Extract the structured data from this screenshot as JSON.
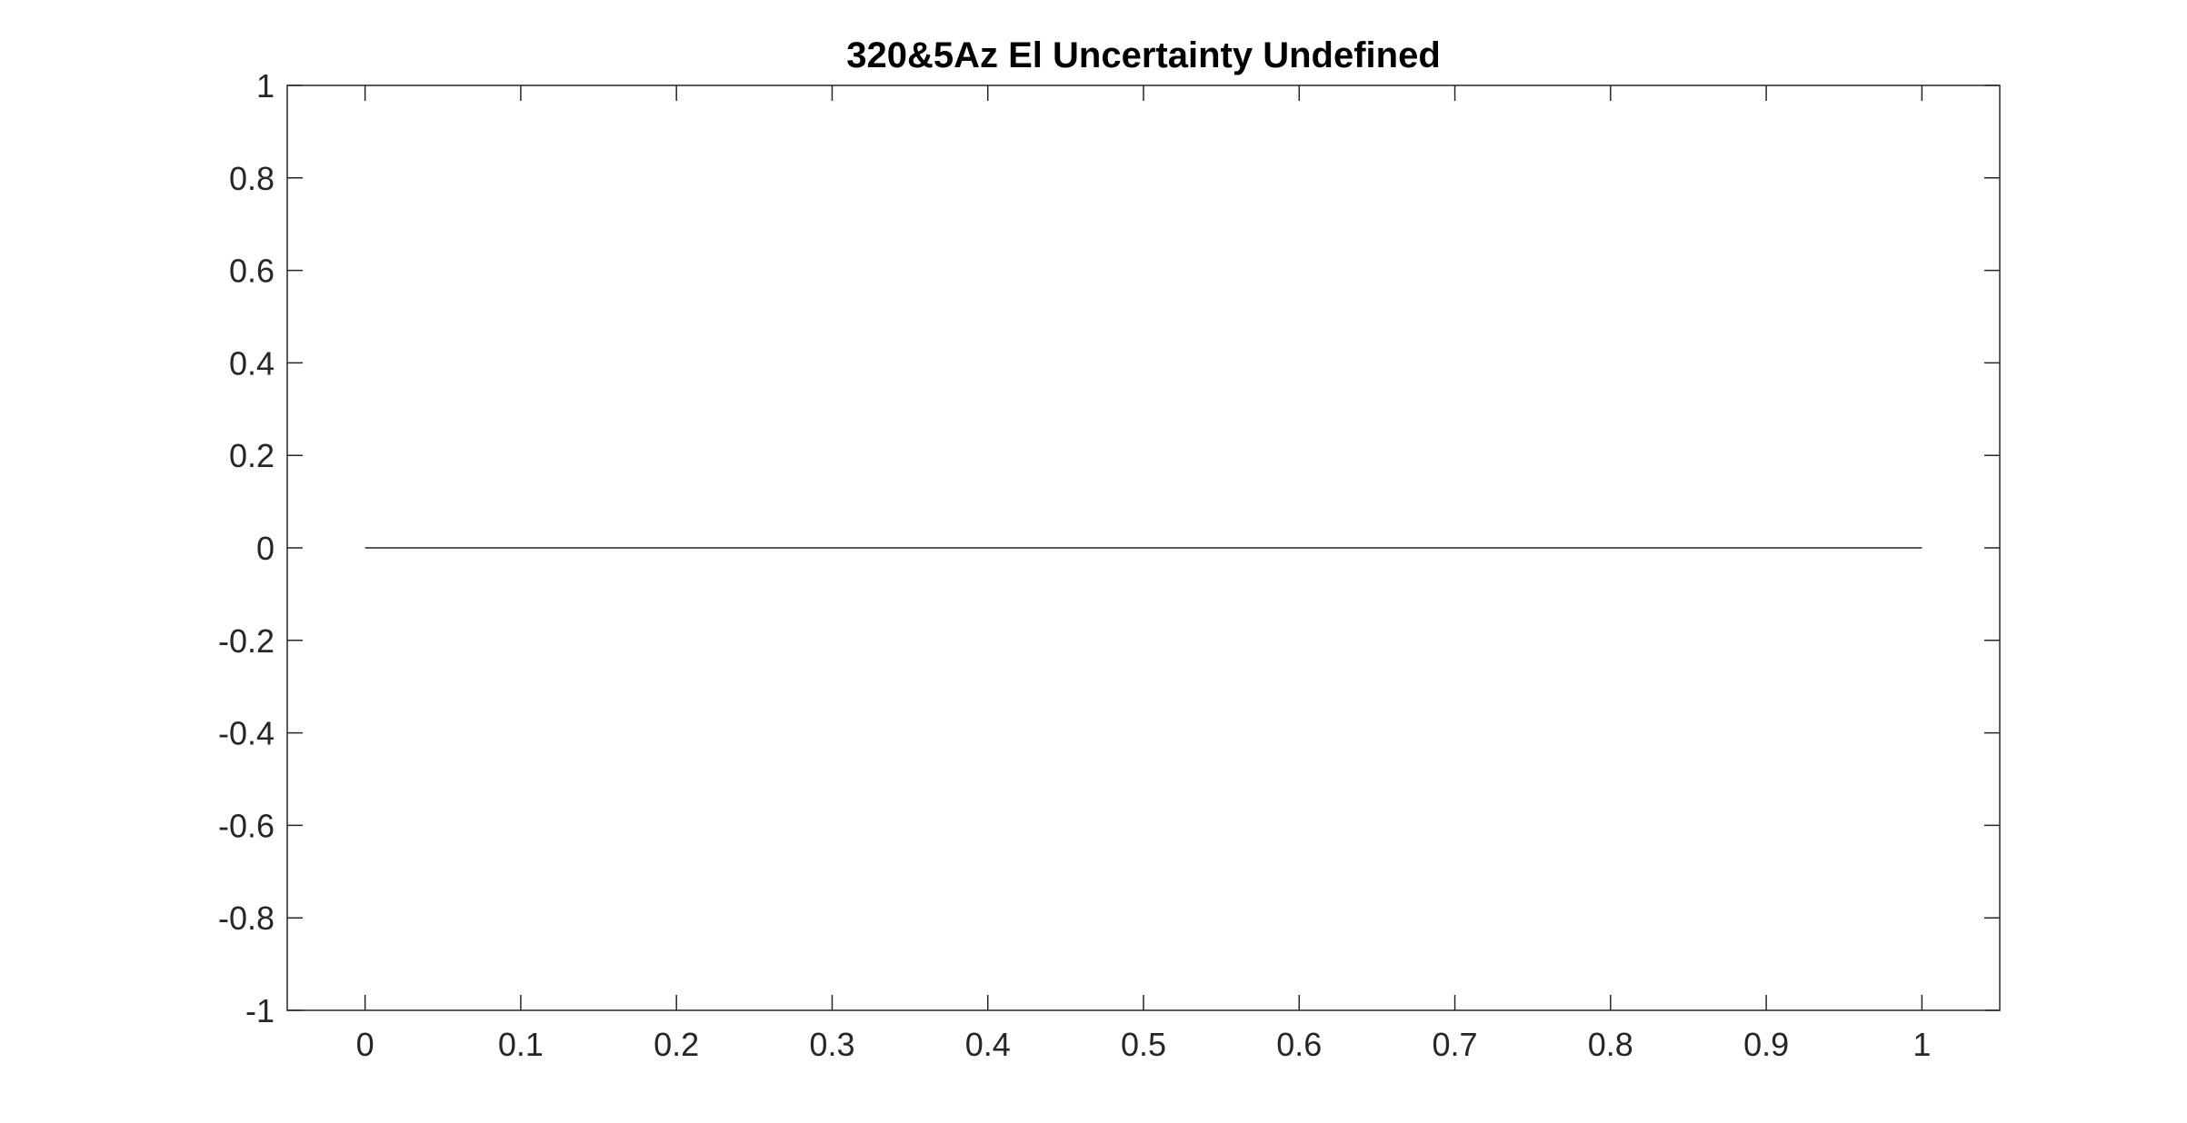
{
  "chart_data": {
    "type": "line",
    "title": "320&5Az El Uncertainty Undefined",
    "xlabel": "",
    "ylabel": "",
    "xlim": [
      -0.05,
      1.05
    ],
    "ylim": [
      -1,
      1
    ],
    "x_ticks": [
      0,
      0.1,
      0.2,
      0.3,
      0.4,
      0.5,
      0.6,
      0.7,
      0.8,
      0.9,
      1
    ],
    "x_tick_labels": [
      "0",
      "0.1",
      "0.2",
      "0.3",
      "0.4",
      "0.5",
      "0.6",
      "0.7",
      "0.8",
      "0.9",
      "1"
    ],
    "y_ticks": [
      -1,
      -0.8,
      -0.6,
      -0.4,
      -0.2,
      0,
      0.2,
      0.4,
      0.6,
      0.8,
      1
    ],
    "y_tick_labels": [
      "-1",
      "-0.8",
      "-0.6",
      "-0.4",
      "-0.2",
      "0",
      "0.2",
      "0.4",
      "0.6",
      "0.8",
      "1"
    ],
    "grid": false,
    "box": true,
    "series": [
      {
        "x": [
          0,
          1
        ],
        "y": [
          0,
          0
        ],
        "color": "#5a5a5a"
      }
    ]
  }
}
